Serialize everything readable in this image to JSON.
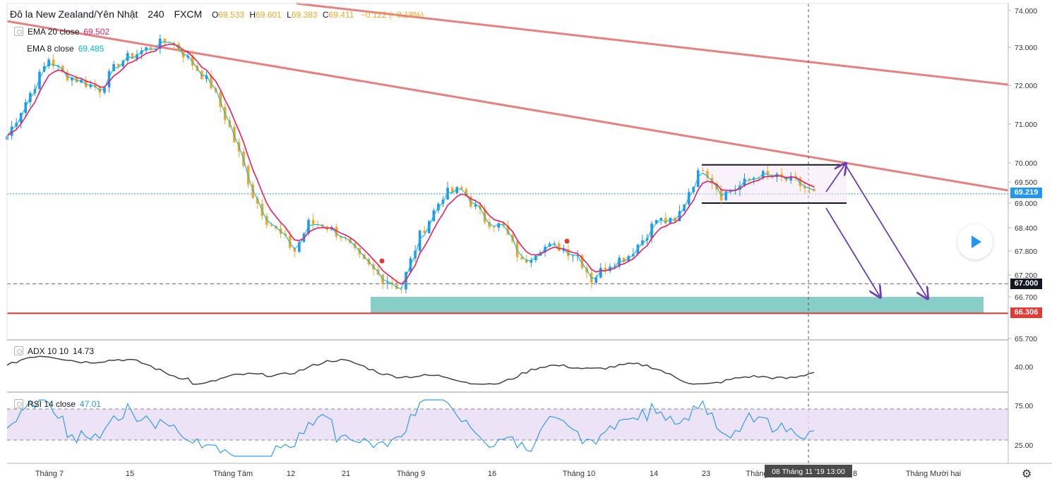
{
  "header": {
    "symbol": "Đô la New Zealand/Yên Nhật",
    "interval": "240",
    "exchange": "FXCM",
    "open_label": "O",
    "open": "69.533",
    "high_label": "H",
    "high": "69.601",
    "low_label": "L",
    "low": "69.383",
    "close_label": "C",
    "close": "69.411",
    "change": "−0.122 (−0.18%)"
  },
  "indicators": {
    "ema20": {
      "label": "EMA 20 close",
      "value": "69.502",
      "color": "#e91e63"
    },
    "ema8": {
      "label": "EMA 8 close",
      "value": "69.485",
      "color": "#00bcd4"
    },
    "adx": {
      "label": "ADX 10 10",
      "value": "14.73"
    },
    "rsi": {
      "label": "RSI 14 close",
      "value": "47.01",
      "color": "#2196f3"
    }
  },
  "price_tags": {
    "last": "69.219",
    "level_1": "67.000",
    "level_2": "66.306"
  },
  "crosshair_label": "08 Tháng 11 '19   13:00",
  "colors": {
    "up": "#2196f3",
    "down": "#f5a623",
    "trendline": "#e57373",
    "support_zone": "#80cbc4",
    "arrow": "#6a3fb5",
    "rsi_band": "#e8dcf5"
  },
  "chart_data": [
    {
      "type": "candlestick",
      "title": "Đô la New Zealand/Yên Nhật · 240 · FXCM",
      "x_ticks": [
        "Tháng 7",
        "15",
        "Tháng Tám",
        "12",
        "21",
        "Tháng 9",
        "16",
        "Tháng 10",
        "14",
        "23",
        "Tháng",
        "8",
        "Tháng Mười hai"
      ],
      "y_ticks": [
        "74.000",
        "73.000",
        "72.000",
        "71.000",
        "70.000",
        "69.500",
        "69.000",
        "68.400",
        "67.800",
        "67.200",
        "66.700",
        "65.700"
      ],
      "ylim": [
        65.6,
        74.1
      ],
      "close_path": [
        {
          "x": 0,
          "y": 70.7
        },
        {
          "x": 5,
          "y": 71.8
        },
        {
          "x": 9,
          "y": 72.7
        },
        {
          "x": 12,
          "y": 72.3
        },
        {
          "x": 16,
          "y": 72.1
        },
        {
          "x": 20,
          "y": 71.9
        },
        {
          "x": 24,
          "y": 72.6
        },
        {
          "x": 29,
          "y": 72.9
        },
        {
          "x": 35,
          "y": 73.2
        },
        {
          "x": 39,
          "y": 72.7
        },
        {
          "x": 44,
          "y": 72.0
        },
        {
          "x": 48,
          "y": 70.9
        },
        {
          "x": 53,
          "y": 69.2
        },
        {
          "x": 56,
          "y": 68.6
        },
        {
          "x": 59,
          "y": 68.2
        },
        {
          "x": 62,
          "y": 67.8
        },
        {
          "x": 65,
          "y": 68.5
        },
        {
          "x": 68,
          "y": 68.5
        },
        {
          "x": 72,
          "y": 68.2
        },
        {
          "x": 76,
          "y": 67.6
        },
        {
          "x": 80,
          "y": 67.2
        },
        {
          "x": 85,
          "y": 66.9
        },
        {
          "x": 89,
          "y": 68.2
        },
        {
          "x": 94,
          "y": 69.2
        },
        {
          "x": 98,
          "y": 69.3
        },
        {
          "x": 103,
          "y": 68.6
        },
        {
          "x": 107,
          "y": 68.4
        },
        {
          "x": 111,
          "y": 67.5
        },
        {
          "x": 115,
          "y": 67.9
        },
        {
          "x": 119,
          "y": 67.9
        },
        {
          "x": 123,
          "y": 67.7
        },
        {
          "x": 126,
          "y": 67.1
        },
        {
          "x": 130,
          "y": 67.5
        },
        {
          "x": 134,
          "y": 67.7
        },
        {
          "x": 137,
          "y": 68.1
        },
        {
          "x": 140,
          "y": 68.6
        },
        {
          "x": 144,
          "y": 68.5
        },
        {
          "x": 147,
          "y": 69.3
        },
        {
          "x": 150,
          "y": 69.9
        },
        {
          "x": 154,
          "y": 69.2
        },
        {
          "x": 158,
          "y": 69.4
        },
        {
          "x": 162,
          "y": 69.7
        },
        {
          "x": 166,
          "y": 69.6
        },
        {
          "x": 170,
          "y": 69.5
        },
        {
          "x": 174,
          "y": 69.2
        }
      ],
      "ema20_last": 69.502,
      "ema8_last": 69.485,
      "levels": [
        67.0,
        66.306
      ],
      "last_price": 69.219,
      "range_box": [
        69.0,
        69.95
      ]
    },
    {
      "type": "line",
      "title": "ADX 10 10",
      "y_ticks": [
        "40.00"
      ],
      "last": 14.73
    },
    {
      "type": "line",
      "title": "RSI 14 close",
      "y_ticks": [
        "75.00",
        "25.00"
      ],
      "band": [
        30,
        70
      ],
      "last": 47.01
    }
  ]
}
